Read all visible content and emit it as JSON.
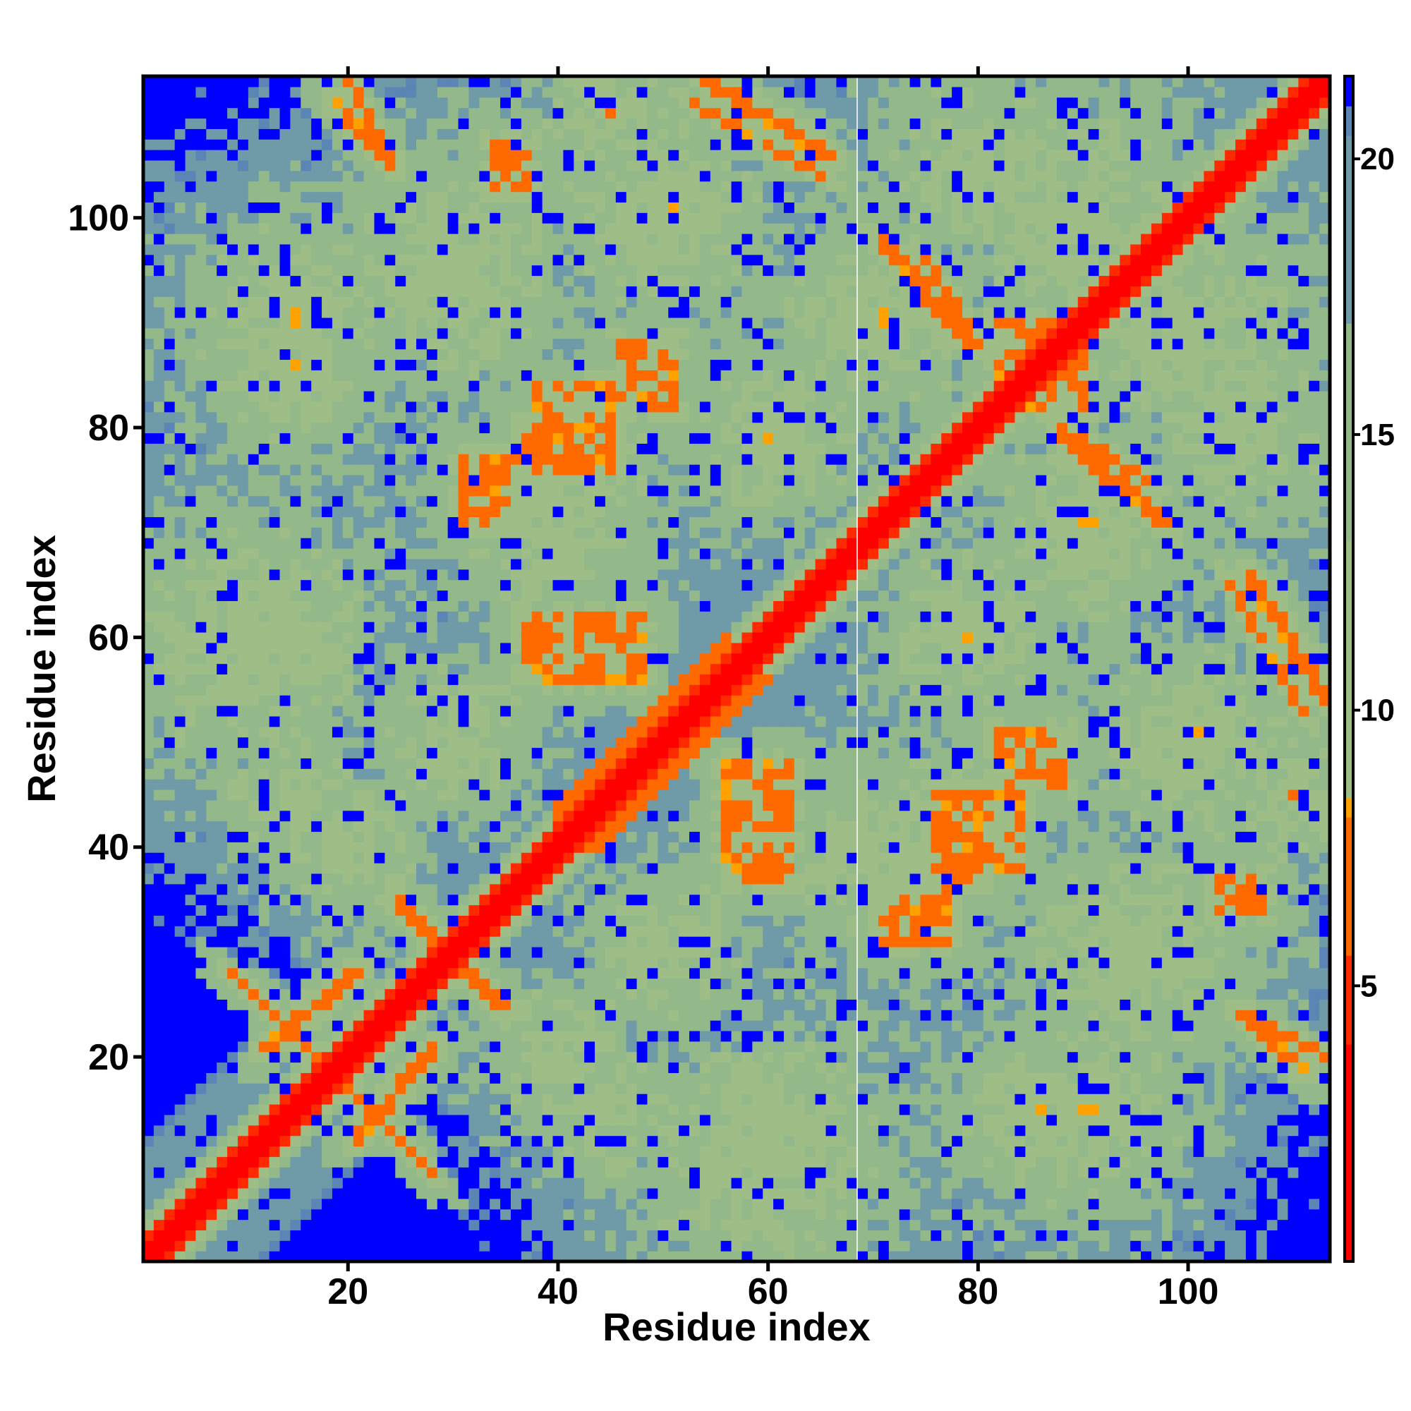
{
  "chart_data": {
    "type": "heatmap",
    "title": "",
    "xlabel": "Residue index",
    "ylabel": "Residue index",
    "n_residues": 113,
    "xlim": [
      0.5,
      113.5
    ],
    "ylim": [
      0.5,
      113.5
    ],
    "x_ticks": [
      20,
      40,
      60,
      80,
      100
    ],
    "y_ticks": [
      20,
      40,
      60,
      80,
      100
    ],
    "colorbar": {
      "ticks": [
        5,
        10,
        15,
        20
      ],
      "range": [
        0,
        21.5
      ],
      "stops": [
        {
          "value": 0,
          "color": "#ff0000"
        },
        {
          "value": 4,
          "color": "#ff2a00"
        },
        {
          "value": 5.5,
          "color": "#ff6a00"
        },
        {
          "value": 8,
          "color": "#ffa200"
        },
        {
          "value": 8.5,
          "color": "#9fbd86"
        },
        {
          "value": 13,
          "color": "#93b88a"
        },
        {
          "value": 17,
          "color": "#6f9aa7"
        },
        {
          "value": 20.5,
          "color": "#5a85b5"
        },
        {
          "value": 21,
          "color": "#0000ff"
        }
      ]
    },
    "cell_colors": {
      "diagonal": "#ff0000",
      "contact_near": "#ff6a00",
      "contact": "#ffa200",
      "intermediate": "#9fbd86",
      "far": "#6f9aa7",
      "background": "#0000ff"
    },
    "contact_features": [
      {
        "kind": "helix_band",
        "from": 40,
        "to": 56,
        "width": 4
      },
      {
        "kind": "parallel_strand",
        "x": [
          12,
          21
        ],
        "y": [
          21,
          28
        ]
      },
      {
        "kind": "antiparallel_strand",
        "x": [
          20,
          28
        ],
        "y": [
          9,
          17
        ]
      },
      {
        "kind": "antiparallel_strand",
        "x": [
          25,
          34
        ],
        "y": [
          25,
          35
        ]
      },
      {
        "kind": "antiparallel_strand",
        "x": [
          20,
          24
        ],
        "y": [
          106,
          113
        ]
      },
      {
        "kind": "antiparallel_strand",
        "x": [
          54,
          66
        ],
        "y": [
          106,
          113
        ]
      },
      {
        "kind": "antiparallel_strand",
        "x": [
          75,
          80
        ],
        "y": [
          88,
          96
        ]
      },
      {
        "kind": "antiparallel_strand",
        "x": [
          88,
          98
        ],
        "y": [
          71,
          79
        ]
      },
      {
        "kind": "antiparallel_strand",
        "x": [
          104,
          111
        ],
        "y": [
          53,
          65
        ]
      },
      {
        "kind": "antiparallel_strand",
        "x": [
          105,
          111
        ],
        "y": [
          19,
          24
        ]
      },
      {
        "kind": "patch",
        "x": [
          31,
          35
        ],
        "y": [
          71,
          76
        ]
      },
      {
        "kind": "patch",
        "x": [
          38,
          45
        ],
        "y": [
          76,
          84
        ]
      },
      {
        "kind": "patch",
        "x": [
          42,
          48
        ],
        "y": [
          56,
          62
        ]
      },
      {
        "kind": "patch",
        "x": [
          56,
          62
        ],
        "y": [
          37,
          47
        ]
      },
      {
        "kind": "patch",
        "x": [
          72,
          77
        ],
        "y": [
          31,
          36
        ]
      },
      {
        "kind": "patch",
        "x": [
          76,
          80
        ],
        "y": [
          37,
          44
        ]
      },
      {
        "kind": "patch",
        "x": [
          82,
          88
        ],
        "y": [
          46,
          51
        ]
      },
      {
        "kind": "patch",
        "x": [
          82,
          90
        ],
        "y": [
          83,
          90
        ]
      },
      {
        "kind": "patch",
        "x": [
          104,
          107
        ],
        "y": [
          34,
          37
        ]
      },
      {
        "kind": "patch",
        "x": [
          34,
          37
        ],
        "y": [
          103,
          106
        ]
      }
    ]
  }
}
